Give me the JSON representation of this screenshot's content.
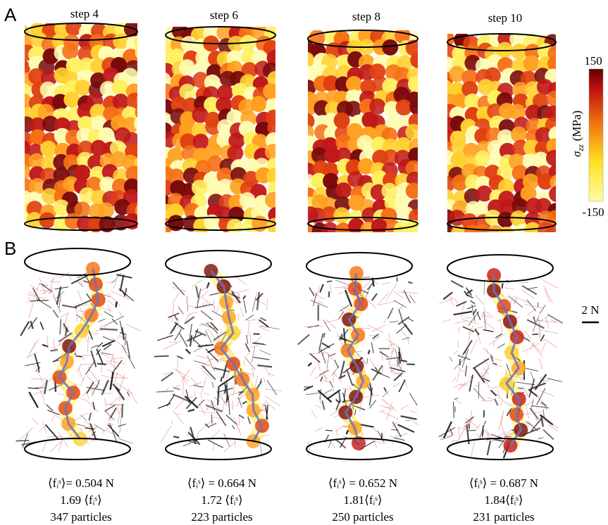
{
  "panel_labels": [
    "A",
    "B"
  ],
  "panel_a": {
    "steps": [
      "step 4",
      "step 6",
      "step 8",
      "step 10"
    ]
  },
  "colorbar": {
    "symbol": "σ",
    "subscript": "zz",
    "unit": "(MPa)",
    "max": 150,
    "min": -150
  },
  "scale_bar": "2 N",
  "panel_b": {
    "stats": [
      [
        "⟨fᵢˢ⟩= 0.504 N",
        "1.69 ⟨fᵢˢ⟩",
        "347 particles"
      ],
      [
        "⟨fᵢˢ⟩ = 0.664 N",
        "1.72 ⟨fᵢˢ⟩",
        "223 particles"
      ],
      [
        "⟨fᵢˢ⟩ = 0.652 N",
        "1.81⟨fᵢˢ⟩",
        "250 particles"
      ],
      [
        "⟨fᵢˢ⟩ = 0.687 N",
        "1.84⟨fᵢˢ⟩",
        "231 particles"
      ]
    ]
  }
}
